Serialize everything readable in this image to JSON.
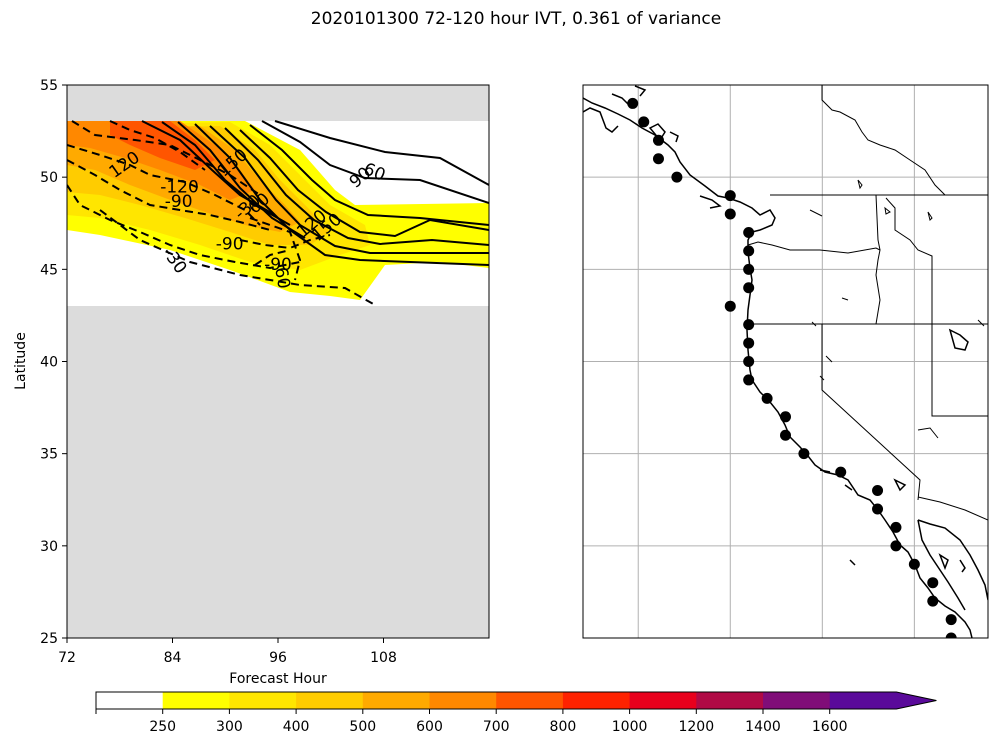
{
  "title": "2020101300 72-120 hour IVT, 0.361 of variance",
  "chart_data": [
    {
      "type": "contour",
      "panel": "left",
      "xlabel": "Forecast Hour",
      "ylabel": "Latitude",
      "xlim": [
        72,
        120
      ],
      "ylim": [
        25,
        55
      ],
      "xticks": [
        "72",
        "84",
        "96",
        "108"
      ],
      "yticks": [
        "25",
        "30",
        "35",
        "40",
        "45",
        "50",
        "55"
      ],
      "missing_data_color": "#dcdcdc",
      "valid_lat_range": [
        43,
        53
      ],
      "contour_labels": [
        {
          "text": "60",
          "x": 107.0,
          "y": 50.3,
          "rot": 22
        },
        {
          "text": "90",
          "x": 105.3,
          "y": 50.0,
          "rot": -40
        },
        {
          "text": "150",
          "x": 101.5,
          "y": 47.3,
          "rot": -40
        },
        {
          "text": "120",
          "x": 99.8,
          "y": 47.5,
          "rot": -40
        },
        {
          "text": "150",
          "x": 90.8,
          "y": 50.8,
          "rot": -40
        },
        {
          "text": "120",
          "x": 78.5,
          "y": 50.7,
          "rot": -35
        },
        {
          "text": "-120",
          "x": 84.8,
          "y": 49.5,
          "rot": 0
        },
        {
          "text": "-90",
          "x": 84.7,
          "y": 48.7,
          "rot": 0
        },
        {
          "text": "-90",
          "x": 90.5,
          "y": 46.4,
          "rot": 0
        },
        {
          "text": "-90",
          "x": 96.0,
          "y": 45.3,
          "rot": 0
        },
        {
          "text": "-30",
          "x": 84.3,
          "y": 45.5,
          "rot": 55
        },
        {
          "text": "-30",
          "x": 92.5,
          "y": 48.4,
          "rot": -40
        },
        {
          "text": "60",
          "x": 93.8,
          "y": 48.6,
          "rot": -40
        },
        {
          "text": "-60",
          "x": 96.5,
          "y": 44.7,
          "rot": 80
        }
      ]
    },
    {
      "type": "map",
      "panel": "right",
      "region": "US West Coast",
      "extent_lon": [
        -134,
        -112
      ],
      "extent_lat": [
        25,
        55
      ],
      "gridlines_lon": [
        -131,
        -126,
        -121,
        -116
      ],
      "gridlines_lat": [
        50,
        45,
        40,
        35,
        30
      ],
      "points": [
        {
          "lon": -131.3,
          "lat": 54.0
        },
        {
          "lon": -130.7,
          "lat": 53.0
        },
        {
          "lon": -129.9,
          "lat": 52.0
        },
        {
          "lon": -129.9,
          "lat": 51.0
        },
        {
          "lon": -128.9,
          "lat": 50.0
        },
        {
          "lon": -126.0,
          "lat": 49.0
        },
        {
          "lon": -126.0,
          "lat": 48.0
        },
        {
          "lon": -125.0,
          "lat": 47.0
        },
        {
          "lon": -125.0,
          "lat": 46.0
        },
        {
          "lon": -125.0,
          "lat": 45.0
        },
        {
          "lon": -125.0,
          "lat": 44.0
        },
        {
          "lon": -126.0,
          "lat": 43.0
        },
        {
          "lon": -125.0,
          "lat": 42.0
        },
        {
          "lon": -125.0,
          "lat": 41.0
        },
        {
          "lon": -125.0,
          "lat": 40.0
        },
        {
          "lon": -125.0,
          "lat": 39.0
        },
        {
          "lon": -124.0,
          "lat": 38.0
        },
        {
          "lon": -123.0,
          "lat": 37.0
        },
        {
          "lon": -123.0,
          "lat": 36.0
        },
        {
          "lon": -122.0,
          "lat": 35.0
        },
        {
          "lon": -120.0,
          "lat": 34.0
        },
        {
          "lon": -118.0,
          "lat": 33.0
        },
        {
          "lon": -118.0,
          "lat": 32.0
        },
        {
          "lon": -117.0,
          "lat": 31.0
        },
        {
          "lon": -117.0,
          "lat": 30.0
        },
        {
          "lon": -116.0,
          "lat": 29.0
        },
        {
          "lon": -115.0,
          "lat": 28.0
        },
        {
          "lon": -115.0,
          "lat": 27.0
        },
        {
          "lon": -114.0,
          "lat": 26.0
        },
        {
          "lon": -114.0,
          "lat": 25.0
        }
      ]
    }
  ],
  "colorbar": {
    "levels": [
      "250",
      "300",
      "400",
      "500",
      "600",
      "700",
      "800",
      "1000",
      "1200",
      "1400",
      "1600"
    ],
    "colors": [
      "#ffffff",
      "#ffff00",
      "#ffe600",
      "#ffcc00",
      "#ffaa00",
      "#ff8800",
      "#ff5500",
      "#ff2200",
      "#e8001c",
      "#b00a45",
      "#800d78",
      "#5a0a9a"
    ],
    "extend": "max"
  }
}
